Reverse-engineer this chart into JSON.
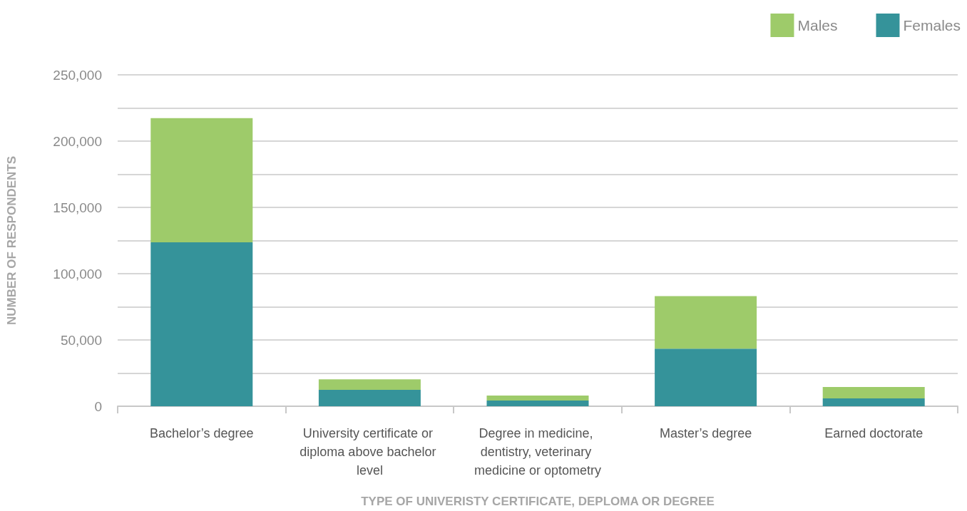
{
  "chart_data": {
    "type": "bar",
    "stacked": true,
    "xlabel": "TYPE OF UNIVERISTY CERTIFICATE, DEPLOMA OR DEGREE",
    "ylabel": "NUMBER OF RESPONDENTS",
    "categories": [
      "Bachelor’s degree",
      "University certificate or diploma above bachelor level",
      "Degree in medicine, dentistry, veterinary medicine or optometry",
      "Master’s degree",
      "Earned doctorate"
    ],
    "series": [
      {
        "name": "Females",
        "color": "#35939a",
        "values": [
          123700,
          12300,
          4300,
          43400,
          5900
        ]
      },
      {
        "name": "Males",
        "color": "#9ecb6a",
        "values": [
          93600,
          8000,
          3700,
          39600,
          8600
        ]
      }
    ],
    "ylim": [
      0,
      250000
    ],
    "yticks": [
      0,
      {
        "value": 25000,
        "label": null
      },
      {
        "value": 50000,
        "label": "50,000"
      },
      {
        "value": 75000,
        "label": null
      },
      {
        "value": 100000,
        "label": "100,000"
      },
      {
        "value": 125000,
        "label": null
      },
      {
        "value": 150000,
        "label": "150,000"
      },
      {
        "value": 175000,
        "label": null
      },
      {
        "value": 200000,
        "label": "200,000"
      },
      {
        "value": 225000,
        "label": null
      },
      {
        "value": 250000,
        "label": "250,000"
      }
    ],
    "grid": "y",
    "legend": "top right"
  }
}
